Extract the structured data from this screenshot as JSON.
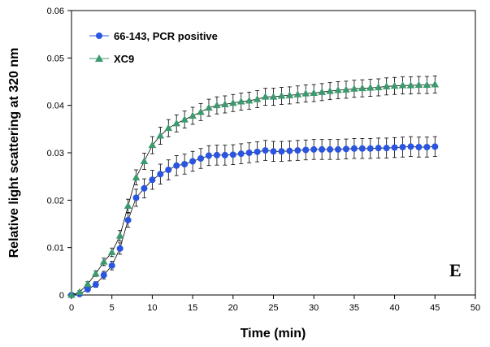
{
  "chart_data": {
    "type": "scatter",
    "xlabel": "Time (min)",
    "ylabel": "Relative light scattering at 320 nm",
    "xlim": [
      0,
      50
    ],
    "ylim": [
      0,
      0.06
    ],
    "x_ticks": [
      0,
      5,
      10,
      15,
      20,
      25,
      30,
      35,
      40,
      45,
      50
    ],
    "y_ticks": [
      0,
      0.01,
      0.02,
      0.03,
      0.04,
      0.05,
      0.06
    ],
    "x_tick_labels": [
      "0",
      "5",
      "10",
      "15",
      "20",
      "25",
      "30",
      "35",
      "40",
      "45",
      "50"
    ],
    "y_tick_labels": [
      "0",
      "0.01",
      "0.02",
      "0.03",
      "0.04",
      "0.05",
      "0.06"
    ],
    "grid": false,
    "legend_position": "top-left",
    "annotation": "E",
    "series": [
      {
        "name": "66-143, PCR positive",
        "marker": "circle",
        "color": "#2a55e0",
        "x": [
          0,
          1,
          2,
          3,
          4,
          5,
          6,
          7,
          8,
          9,
          10,
          11,
          12,
          13,
          14,
          15,
          16,
          17,
          18,
          19,
          20,
          21,
          22,
          23,
          24,
          25,
          26,
          27,
          28,
          29,
          30,
          31,
          32,
          33,
          34,
          35,
          36,
          37,
          38,
          39,
          40,
          41,
          42,
          43,
          44,
          45
        ],
        "y": [
          0,
          0.0002,
          0.0012,
          0.0022,
          0.0042,
          0.0062,
          0.0098,
          0.0158,
          0.0205,
          0.0225,
          0.0243,
          0.0255,
          0.0264,
          0.0273,
          0.0276,
          0.0282,
          0.0288,
          0.0294,
          0.0295,
          0.0295,
          0.0296,
          0.0298,
          0.03,
          0.0302,
          0.0305,
          0.0303,
          0.0303,
          0.0304,
          0.0305,
          0.0306,
          0.0307,
          0.0307,
          0.0307,
          0.0307,
          0.0308,
          0.0309,
          0.0309,
          0.0309,
          0.031,
          0.031,
          0.0311,
          0.0312,
          0.0313,
          0.0312,
          0.0312,
          0.0313
        ],
        "err": [
          0,
          0.0003,
          0.0005,
          0.0006,
          0.0008,
          0.0009,
          0.0012,
          0.0015,
          0.0018,
          0.002,
          0.002,
          0.0021,
          0.0021,
          0.0021,
          0.0021,
          0.0021,
          0.0021,
          0.0021,
          0.0021,
          0.0021,
          0.0021,
          0.0021,
          0.0021,
          0.0021,
          0.0021,
          0.0021,
          0.0021,
          0.0021,
          0.0021,
          0.0021,
          0.0021,
          0.0021,
          0.0021,
          0.0021,
          0.0021,
          0.0021,
          0.0021,
          0.0021,
          0.0021,
          0.0021,
          0.0021,
          0.0021,
          0.0021,
          0.0021,
          0.0021,
          0.0021
        ]
      },
      {
        "name": "XC9",
        "marker": "triangle",
        "color": "#3c9a6e",
        "x": [
          0,
          1,
          2,
          3,
          4,
          5,
          6,
          7,
          8,
          9,
          10,
          11,
          12,
          13,
          14,
          15,
          16,
          17,
          18,
          19,
          20,
          21,
          22,
          23,
          24,
          25,
          26,
          27,
          28,
          29,
          30,
          31,
          32,
          33,
          34,
          35,
          36,
          37,
          38,
          39,
          40,
          41,
          42,
          43,
          44,
          45
        ],
        "y": [
          0,
          0.0006,
          0.0023,
          0.0045,
          0.007,
          0.009,
          0.0125,
          0.0188,
          0.0248,
          0.0282,
          0.0316,
          0.0336,
          0.0352,
          0.0362,
          0.037,
          0.0378,
          0.0386,
          0.0395,
          0.04,
          0.0402,
          0.0405,
          0.0408,
          0.041,
          0.0413,
          0.0418,
          0.0418,
          0.042,
          0.0421,
          0.0423,
          0.0425,
          0.0426,
          0.0428,
          0.043,
          0.0432,
          0.0433,
          0.0435,
          0.0436,
          0.0437,
          0.0438,
          0.044,
          0.0441,
          0.0442,
          0.0442,
          0.0443,
          0.0443,
          0.0444
        ],
        "err": [
          0,
          0.0003,
          0.0005,
          0.0006,
          0.0008,
          0.0009,
          0.0011,
          0.0014,
          0.0016,
          0.0017,
          0.0018,
          0.0018,
          0.0018,
          0.0018,
          0.0018,
          0.0018,
          0.0018,
          0.0018,
          0.0018,
          0.0018,
          0.0018,
          0.0018,
          0.0018,
          0.0018,
          0.0018,
          0.0018,
          0.0018,
          0.0018,
          0.0018,
          0.0018,
          0.0018,
          0.0018,
          0.0018,
          0.0018,
          0.0018,
          0.0018,
          0.0018,
          0.0018,
          0.0018,
          0.0018,
          0.0018,
          0.0018,
          0.0018,
          0.0018,
          0.0018,
          0.0018
        ]
      }
    ]
  }
}
